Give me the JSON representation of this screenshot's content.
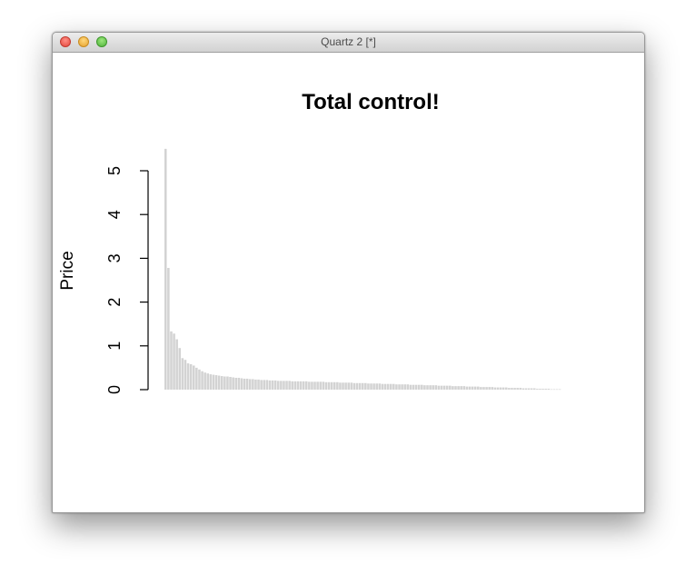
{
  "window": {
    "title": "Quartz 2 [*]"
  },
  "chart_data": {
    "type": "bar",
    "title": "Total control!",
    "xlabel": "",
    "ylabel": "Price",
    "ylim": [
      0,
      5.5
    ],
    "yticks": [
      "0",
      "1",
      "2",
      "3",
      "4",
      "5"
    ],
    "bar_color": "#d3d3d3",
    "values": [
      5.5,
      2.78,
      1.33,
      1.28,
      1.15,
      0.95,
      0.72,
      0.68,
      0.6,
      0.58,
      0.55,
      0.5,
      0.46,
      0.42,
      0.39,
      0.37,
      0.35,
      0.34,
      0.33,
      0.32,
      0.31,
      0.3,
      0.3,
      0.29,
      0.28,
      0.27,
      0.27,
      0.26,
      0.25,
      0.25,
      0.24,
      0.24,
      0.23,
      0.23,
      0.22,
      0.22,
      0.22,
      0.21,
      0.21,
      0.21,
      0.2,
      0.2,
      0.2,
      0.2,
      0.2,
      0.19,
      0.19,
      0.19,
      0.19,
      0.19,
      0.19,
      0.18,
      0.18,
      0.18,
      0.18,
      0.18,
      0.18,
      0.17,
      0.17,
      0.17,
      0.17,
      0.17,
      0.16,
      0.16,
      0.16,
      0.16,
      0.16,
      0.15,
      0.15,
      0.15,
      0.15,
      0.15,
      0.14,
      0.14,
      0.14,
      0.14,
      0.14,
      0.13,
      0.13,
      0.13,
      0.13,
      0.13,
      0.12,
      0.12,
      0.12,
      0.12,
      0.12,
      0.11,
      0.11,
      0.11,
      0.11,
      0.11,
      0.1,
      0.1,
      0.1,
      0.1,
      0.1,
      0.09,
      0.09,
      0.09,
      0.09,
      0.09,
      0.08,
      0.08,
      0.08,
      0.08,
      0.08,
      0.07,
      0.07,
      0.07,
      0.07,
      0.07,
      0.06,
      0.06,
      0.06,
      0.06,
      0.06,
      0.05,
      0.05,
      0.05,
      0.05,
      0.05,
      0.04,
      0.04,
      0.04,
      0.04,
      0.04,
      0.03,
      0.03,
      0.03,
      0.03,
      0.03,
      0.02,
      0.02,
      0.02,
      0.02,
      0.02,
      0.01,
      0.01,
      0.01,
      0.01
    ]
  }
}
